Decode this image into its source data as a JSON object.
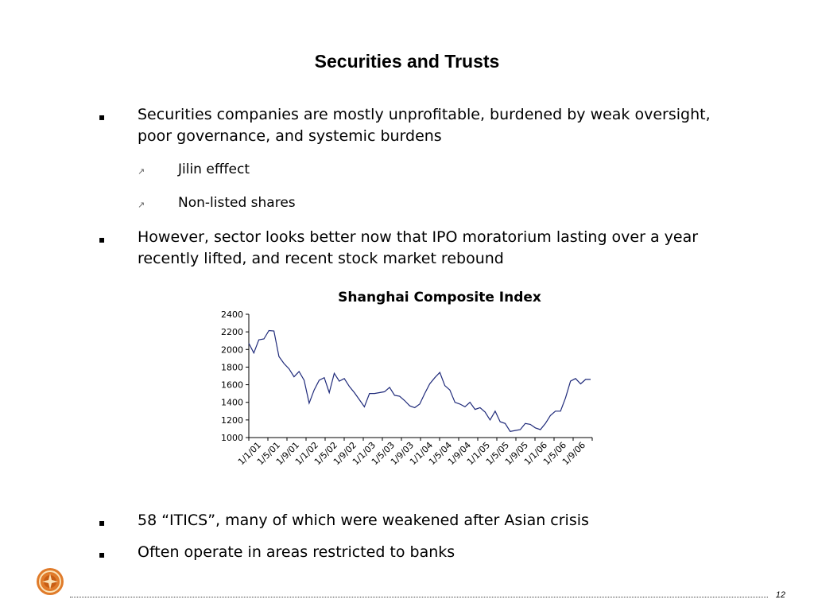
{
  "slide": {
    "title": "Securities and Trusts",
    "bullet_marker": "▪",
    "sub_marker": "↗",
    "bullets": [
      "Securities companies are mostly unprofitable, burdened by weak oversight, poor governance, and systemic burdens",
      "However, sector looks better now that IPO moratorium lasting over a year recently lifted, and recent stock market rebound",
      "58 “ITICS”, many of which were weakened after Asian crisis",
      "Often operate in areas restricted to banks"
    ],
    "sub_bullets": [
      "Jilin efffect",
      "Non-listed shares"
    ],
    "page_number": "12"
  },
  "colors": {
    "line": "#1f2a7a",
    "axis": "#000000",
    "logo": "#e07b2a"
  },
  "icons": {
    "logo": "ornamental-seal-logo"
  },
  "chart_data": {
    "type": "line",
    "title": "Shanghai Composite Index",
    "xlabel": "",
    "ylabel": "",
    "ylim": [
      1000,
      2400
    ],
    "yticks": [
      1000,
      1200,
      1400,
      1600,
      1800,
      2000,
      2200,
      2400
    ],
    "tick_labels": [
      "1/1/01",
      "1/5/01",
      "1/9/01",
      "1/1/02",
      "1/5/02",
      "1/9/02",
      "1/1/03",
      "1/5/03",
      "1/9/03",
      "1/1/04",
      "1/5/04",
      "1/9/04",
      "1/1/05",
      "1/5/05",
      "1/9/05",
      "1/1/06",
      "1/5/06",
      "1/9/06"
    ],
    "grid": false,
    "legend": "none",
    "series": [
      {
        "values": [
          2070,
          1960,
          2110,
          2120,
          2215,
          2210,
          1920,
          1840,
          1780,
          1690,
          1750,
          1650,
          1390,
          1540,
          1650,
          1680,
          1510,
          1730,
          1640,
          1670,
          1580,
          1510,
          1430,
          1350,
          1500,
          1500,
          1510,
          1520,
          1570,
          1480,
          1470,
          1420,
          1360,
          1340,
          1380,
          1500,
          1610,
          1680,
          1740,
          1590,
          1540,
          1400,
          1380,
          1350,
          1400,
          1320,
          1340,
          1290,
          1200,
          1300,
          1180,
          1160,
          1070,
          1080,
          1090,
          1160,
          1150,
          1110,
          1090,
          1160,
          1250,
          1300,
          1300,
          1450,
          1640,
          1670,
          1610,
          1660,
          1660
        ]
      }
    ]
  }
}
